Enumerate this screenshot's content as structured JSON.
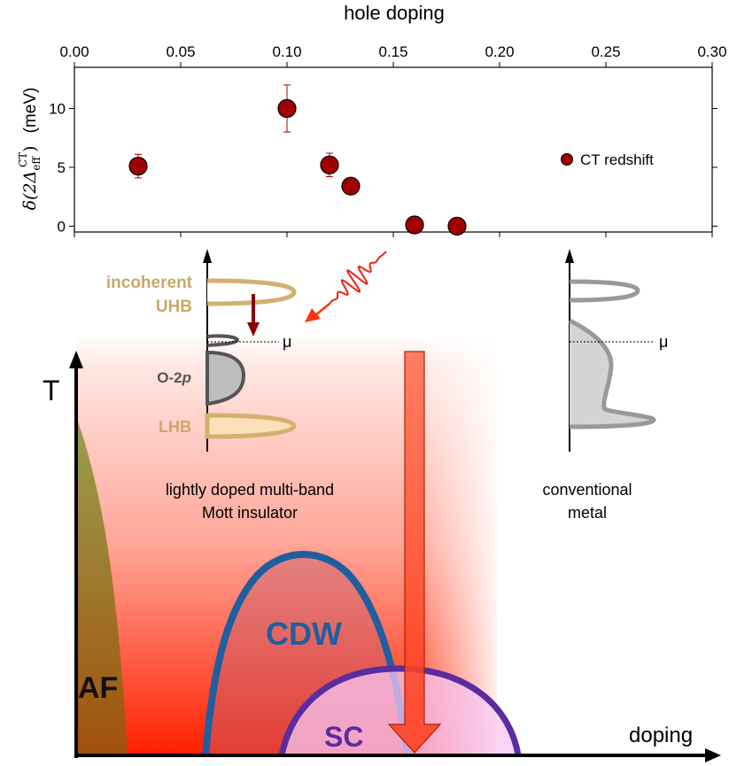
{
  "chart_data": [
    {
      "type": "scatter",
      "xlabel": "hole doping",
      "ylabel_prefix": "δ(2Δ",
      "ylabel_sub": "eff",
      "ylabel_sup": "CT",
      "ylabel_suffix": ")",
      "ylabel_unit": "(meV)",
      "xlim": [
        0.0,
        0.3
      ],
      "ylim": [
        -0.5,
        13.5
      ],
      "x_ticks": [
        0.0,
        0.05,
        0.1,
        0.15,
        0.2,
        0.25,
        0.3
      ],
      "x_tick_labels": [
        "0.00",
        "0.05",
        "0.10",
        "0.15",
        "0.20",
        "0.25",
        "0.30"
      ],
      "y_ticks": [
        0,
        5,
        10
      ],
      "y_tick_labels": [
        "0",
        "5",
        "10"
      ],
      "legend": "CT redshift",
      "legend_position": "right",
      "marker_color": "#a00000",
      "points": [
        {
          "x": 0.03,
          "y": 5.1,
          "err": 1.0
        },
        {
          "x": 0.1,
          "y": 10.0,
          "err": 2.0
        },
        {
          "x": 0.12,
          "y": 5.2,
          "err": 1.0
        },
        {
          "x": 0.13,
          "y": 3.4,
          "err": null
        },
        {
          "x": 0.16,
          "y": 0.1,
          "err": null
        },
        {
          "x": 0.18,
          "y": 0.0,
          "err": null
        }
      ]
    },
    {
      "type": "diagram",
      "y_axis_label": "T",
      "x_axis_label": "doping",
      "regions": {
        "af": "AF",
        "cdw": "CDW",
        "sc": "SC"
      },
      "colors": {
        "af": "#8a8a2a",
        "cdw_line": "#1f5f9f",
        "sc_line": "#5a2ca0",
        "sc_fill": "#f7c8f5",
        "arrow": "#ff5030",
        "background_top": "#ffffff",
        "background_bottom": "#ff2200"
      },
      "left_dos": {
        "incoherent": "incoherent",
        "uhb": "UHB",
        "o2p_prefix": "O-2",
        "o2p_italic": "p",
        "lhb": "LHB",
        "mu": "μ",
        "caption_line1": "lightly doped multi-band",
        "caption_line2": "Mott insulator",
        "band_color": "#d4b070"
      },
      "right_dos": {
        "mu": "μ",
        "caption_line1": "conventional",
        "caption_line2": "metal"
      }
    }
  ]
}
